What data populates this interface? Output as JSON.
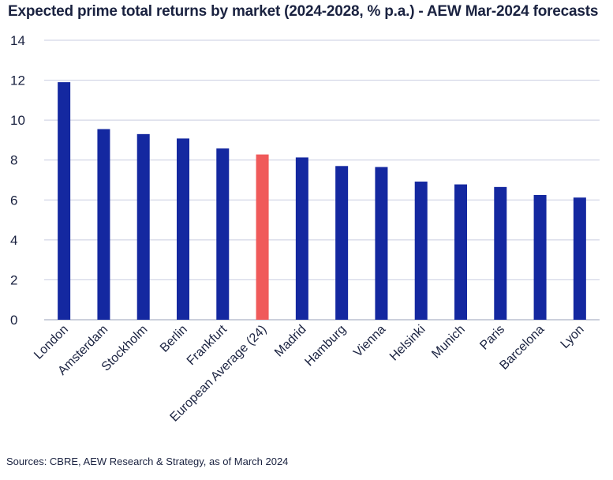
{
  "chart_data": {
    "type": "bar",
    "title": "Expected prime total returns by market (2024-2028, % p.a.) - AEW Mar-2024 forecasts",
    "categories": [
      "London",
      "Amsterdam",
      "Stockholm",
      "Berlin",
      "Frankfurt",
      "European Average (24)",
      "Madrid",
      "Hamburg",
      "Vienna",
      "Helsinki",
      "Munich",
      "Paris",
      "Barcelona",
      "Lyon"
    ],
    "values": [
      11.9,
      9.55,
      9.3,
      9.08,
      8.58,
      8.28,
      8.13,
      7.7,
      7.65,
      6.92,
      6.78,
      6.65,
      6.25,
      6.12
    ],
    "highlight_category": "European Average (24)",
    "yticks": [
      0,
      2,
      4,
      6,
      8,
      10,
      12,
      14
    ],
    "ylim": [
      0,
      14
    ],
    "grid": true,
    "colors": {
      "bar": "#1428a0",
      "highlight": "#f05a5a",
      "grid": "#c9cde0",
      "text": "#1a2240"
    }
  },
  "source": "Sources: CBRE, AEW Research & Strategy, as of March 2024"
}
